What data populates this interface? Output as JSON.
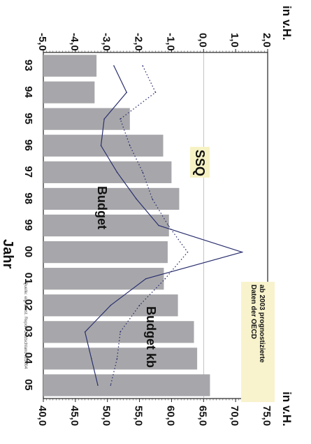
{
  "chart_data": {
    "type": "bar",
    "orientation": "rotated-90-clockwise",
    "xlabel": "Jahr",
    "categories": [
      "93",
      "94",
      "95",
      "96",
      "97",
      "98",
      "99",
      "00",
      "01",
      "02",
      "03",
      "04",
      "05"
    ],
    "left_axis": {
      "unit": "in v.H.",
      "ticks": [
        "2,0",
        "1,0",
        "0,0",
        "-1,0",
        "-2,0",
        "-3,0",
        "-4,0",
        "-5,0"
      ],
      "range": [
        2.0,
        -5.0
      ]
    },
    "right_axis": {
      "unit": "in v.H.",
      "ticks": [
        "75,0",
        "70,0",
        "65,0",
        "60,0",
        "55,0",
        "50,0",
        "45,0",
        "40,0"
      ],
      "range": [
        75.0,
        40.0
      ]
    },
    "series": [
      {
        "name": "SSQ",
        "kind": "bar",
        "axis": "right",
        "values": [
          48.3,
          48.0,
          53.5,
          58.7,
          60.0,
          61.2,
          59.6,
          59.4,
          58.8,
          61.0,
          63.5,
          64.0,
          66.0
        ]
      },
      {
        "name": "Budget",
        "kind": "line",
        "axis": "left",
        "values": [
          -2.8,
          -2.4,
          -3.1,
          -3.2,
          -2.7,
          -2.1,
          -1.4,
          1.2,
          -1.8,
          -2.9,
          -3.7,
          -3.5,
          -3.3
        ]
      },
      {
        "name": "Budget kb",
        "kind": "dotted-line",
        "axis": "left",
        "values": [
          -1.9,
          -1.5,
          -2.6,
          -2.3,
          -1.9,
          -1.6,
          -1.1,
          -0.5,
          -1.2,
          -2.0,
          -2.6,
          -2.7,
          -2.9
        ]
      }
    ],
    "annotation": "ab 2003 prognostizierte Daten der OECD",
    "source": "Quelle: eig. Darst. Report Deutschland III/2004",
    "colors": {
      "bars": "#a7a7ab",
      "budget_line": "#2a2f6e",
      "budget_kb_line": "#2a2f6e",
      "label_highlight": "#f7f2c4",
      "annotation_bg": "#f8f3cc"
    }
  }
}
